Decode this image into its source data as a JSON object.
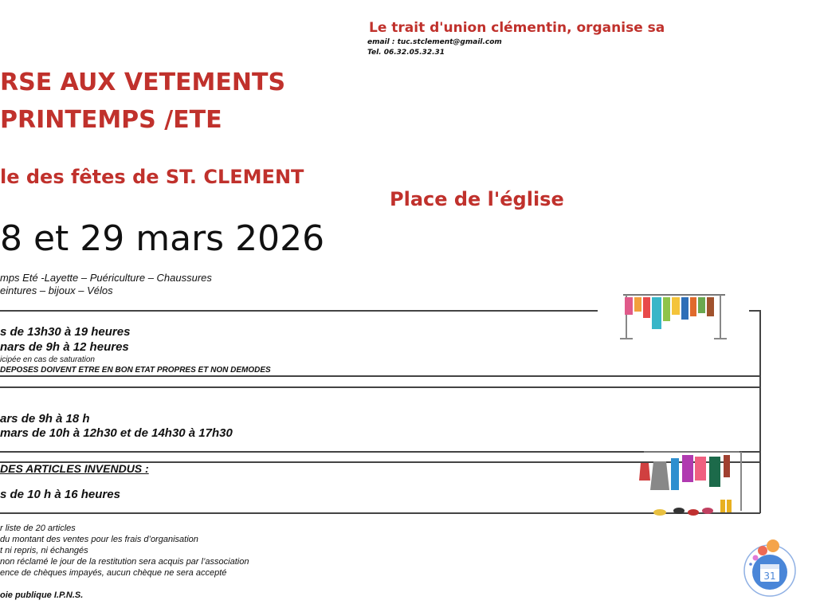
{
  "header": {
    "organizer": "Le trait d'union clémentin, organise sa",
    "email": "email : tuc.stclement@gmail.com",
    "tel": "Tel. 06.32.05.32.31"
  },
  "title": {
    "line1": "RSE AUX VETEMENTS",
    "line2": "PRINTEMPS /ETE",
    "venue": "le des fêtes de ST. CLEMENT",
    "place": "Place de l'église",
    "dates": "8 et 29 mars 2026"
  },
  "categories": [
    "mps Eté -Layette – Puériculture – Chaussures",
    "eintures – bijoux – Vélos"
  ],
  "deposit": {
    "line1": "s de 13h30 à 19 heures",
    "line2": "nars de 9h à 12 heures",
    "note": "icipée en cas de saturation",
    "warning": "DEPOSES DOIVENT ETRE EN BON ETAT  PROPRES ET NON DEMODES"
  },
  "sale": {
    "line1": "ars de 9h à 18 h",
    "line2": "mars de 10h à 12h30 et de 14h30 à 17h30"
  },
  "return": {
    "heading": "DES ARTICLES INVENDUS :",
    "line1": "s de 10 h à 16 heures"
  },
  "rules": [
    "r liste de 20 articles",
    "du montant des ventes pour les frais d’organisation",
    "t ni repris, ni échangés",
    "non réclamé le jour de la restitution sera acquis par l’association",
    "ence de chèques impayés, aucun chèque ne sera accepté"
  ],
  "footer": "oie publique I.P.N.S.",
  "calendar_badge": "31",
  "colors": {
    "title_red": "#c0312c",
    "badge_blue": "#4a86d8"
  }
}
